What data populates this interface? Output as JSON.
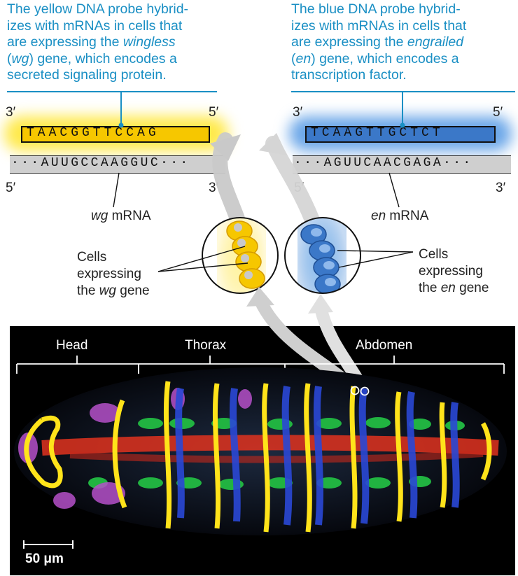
{
  "captions": {
    "yellow_probe": {
      "line1": "The yellow DNA probe hybrid-",
      "line2": "izes with mRNAs in cells that",
      "line3_pre": "are expressing the ",
      "line3_em": "wingless",
      "line4_open": "(",
      "line4_em": "wg",
      "line4_post": ") gene, which encodes a",
      "line5": "secreted signaling protein."
    },
    "blue_probe": {
      "line1": "The blue DNA probe hybrid-",
      "line2": "izes with mRNAs in cells that",
      "line3_pre": "are expressing the ",
      "line3_em": "engrailed",
      "line4_open": "(",
      "line4_em": "en",
      "line4_post": ") gene, which encodes a",
      "line5": "transcription factor."
    }
  },
  "wg": {
    "probe_seq": "TAACGGTTCCAG",
    "mrna_seq": "···AUUGCCAAGGUC···",
    "probe_3": "3′",
    "probe_5": "5′",
    "mrna_5": "5′",
    "mrna_3": "3′",
    "mrna_label_em": "wg",
    "mrna_label": " mRNA",
    "cells_label_1": "Cells",
    "cells_label_2": "expressing",
    "cells_label_3_pre": "the ",
    "cells_label_3_em": "wg",
    "cells_label_3_post": " gene"
  },
  "en": {
    "probe_seq": "TCAAGTTGCTCT",
    "mrna_seq": "···AGUUCAACGAGA···",
    "probe_3": "3′",
    "probe_5": "5′",
    "mrna_5": "5′",
    "mrna_3": "3′",
    "mrna_label_em": "en",
    "mrna_label": " mRNA",
    "cells_label_1": "Cells",
    "cells_label_2": "expressing",
    "cells_label_3_pre": "the ",
    "cells_label_3_em": "en",
    "cells_label_3_post": " gene"
  },
  "embryo": {
    "regions": [
      "Head",
      "Thorax",
      "Abdomen"
    ],
    "scale_bar": "50 μm"
  },
  "colors": {
    "caption": "#1a8fc4",
    "wg_probe": "#f6c700",
    "en_probe": "#3b78c8",
    "panel_bg": "#000000"
  }
}
